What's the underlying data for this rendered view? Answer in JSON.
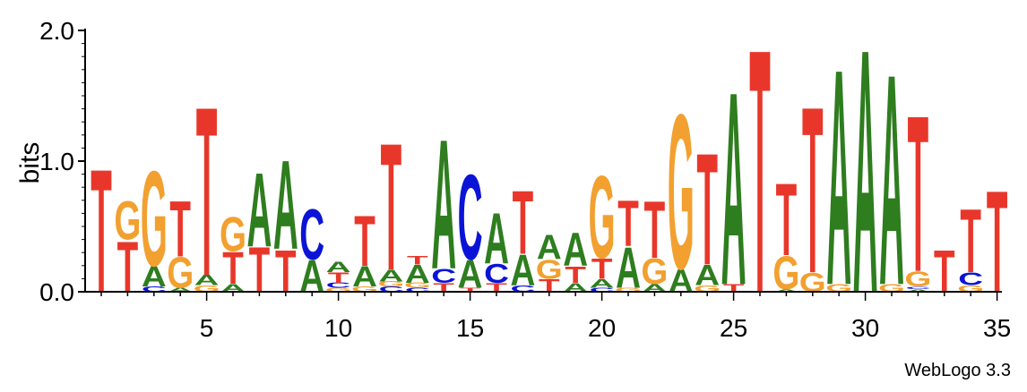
{
  "chart_data": {
    "type": "sequence-logo",
    "ylabel": "bits",
    "ylim": [
      0,
      2.0
    ],
    "y_ticks": [
      "0.0",
      "1.0",
      "2.0"
    ],
    "x_ticks": [
      "5",
      "10",
      "15",
      "20",
      "25",
      "30",
      "35"
    ],
    "x_range": [
      1,
      35
    ],
    "credit": "WebLogo 3.3",
    "colors": {
      "A": "#2e7d1f",
      "C": "#0b14d6",
      "G": "#f2a030",
      "T": "#e8372a"
    },
    "positions": [
      {
        "pos": 1,
        "stack": [
          [
            "T",
            0.97
          ]
        ]
      },
      {
        "pos": 2,
        "stack": [
          [
            "T",
            0.4
          ],
          [
            "G",
            0.3
          ]
        ]
      },
      {
        "pos": 3,
        "stack": [
          [
            "C",
            0.04
          ],
          [
            "A",
            0.16
          ],
          [
            "G",
            0.75
          ]
        ]
      },
      {
        "pos": 4,
        "stack": [
          [
            "A",
            0.03
          ],
          [
            "G",
            0.24
          ],
          [
            "T",
            0.44
          ]
        ]
      },
      {
        "pos": 5,
        "stack": [
          [
            "G",
            0.05
          ],
          [
            "A",
            0.08
          ],
          [
            "T",
            1.33
          ]
        ]
      },
      {
        "pos": 6,
        "stack": [
          [
            "A",
            0.06
          ],
          [
            "T",
            0.25
          ],
          [
            "G",
            0.27
          ]
        ]
      },
      {
        "pos": 7,
        "stack": [
          [
            "T",
            0.35
          ],
          [
            "A",
            0.58
          ]
        ]
      },
      {
        "pos": 8,
        "stack": [
          [
            "T",
            0.33
          ],
          [
            "A",
            0.7
          ]
        ]
      },
      {
        "pos": 9,
        "stack": [
          [
            "A",
            0.25
          ],
          [
            "C",
            0.4
          ]
        ]
      },
      {
        "pos": 10,
        "stack": [
          [
            "G",
            0.03
          ],
          [
            "C",
            0.04
          ],
          [
            "T",
            0.08
          ],
          [
            "A",
            0.08
          ]
        ]
      },
      {
        "pos": 11,
        "stack": [
          [
            "G",
            0.04
          ],
          [
            "A",
            0.16
          ],
          [
            "T",
            0.4
          ]
        ]
      },
      {
        "pos": 12,
        "stack": [
          [
            "C",
            0.04
          ],
          [
            "G",
            0.04
          ],
          [
            "A",
            0.09
          ],
          [
            "T",
            1.0
          ]
        ]
      },
      {
        "pos": 13,
        "stack": [
          [
            "C",
            0.03
          ],
          [
            "G",
            0.04
          ],
          [
            "A",
            0.14
          ],
          [
            "T",
            0.07
          ]
        ]
      },
      {
        "pos": 14,
        "stack": [
          [
            "T",
            0.07
          ],
          [
            "C",
            0.11
          ],
          [
            "A",
            1.02
          ]
        ]
      },
      {
        "pos": 15,
        "stack": [
          [
            "T",
            0.03
          ],
          [
            "A",
            0.22
          ],
          [
            "C",
            0.67
          ]
        ]
      },
      {
        "pos": 16,
        "stack": [
          [
            "T",
            0.07
          ],
          [
            "C",
            0.15
          ],
          [
            "A",
            0.4
          ]
        ]
      },
      {
        "pos": 17,
        "stack": [
          [
            "C",
            0.05
          ],
          [
            "A",
            0.24
          ],
          [
            "T",
            0.5
          ]
        ]
      },
      {
        "pos": 18,
        "stack": [
          [
            "T",
            0.1
          ],
          [
            "G",
            0.15
          ],
          [
            "A",
            0.19
          ]
        ]
      },
      {
        "pos": 19,
        "stack": [
          [
            "A",
            0.07
          ],
          [
            "T",
            0.13
          ],
          [
            "A",
            0.26
          ]
        ]
      },
      {
        "pos": 20,
        "stack": [
          [
            "C",
            0.03
          ],
          [
            "A",
            0.07
          ],
          [
            "T",
            0.16
          ],
          [
            "G",
            0.65
          ]
        ]
      },
      {
        "pos": 21,
        "stack": [
          [
            "G",
            0.03
          ],
          [
            "A",
            0.32
          ],
          [
            "T",
            0.36
          ]
        ]
      },
      {
        "pos": 22,
        "stack": [
          [
            "A",
            0.06
          ],
          [
            "G",
            0.2
          ],
          [
            "T",
            0.45
          ]
        ]
      },
      {
        "pos": 23,
        "stack": [
          [
            "A",
            0.18
          ],
          [
            "G",
            1.22
          ]
        ]
      },
      {
        "pos": 24,
        "stack": [
          [
            "G",
            0.05
          ],
          [
            "A",
            0.16
          ],
          [
            "T",
            0.88
          ]
        ]
      },
      {
        "pos": 25,
        "stack": [
          [
            "T",
            0.06
          ],
          [
            "A",
            1.52
          ]
        ]
      },
      {
        "pos": 26,
        "stack": [
          [
            "T",
            1.92
          ]
        ]
      },
      {
        "pos": 27,
        "stack": [
          [
            "A",
            0.02
          ],
          [
            "G",
            0.26
          ],
          [
            "T",
            0.57
          ]
        ]
      },
      {
        "pos": 28,
        "stack": [
          [
            "G",
            0.15
          ],
          [
            "T",
            1.31
          ]
        ]
      },
      {
        "pos": 29,
        "stack": [
          [
            "G",
            0.06
          ],
          [
            "A",
            1.7
          ]
        ]
      },
      {
        "pos": 30,
        "stack": [
          [
            "A",
            1.92
          ]
        ]
      },
      {
        "pos": 31,
        "stack": [
          [
            "G",
            0.06
          ],
          [
            "A",
            1.66
          ]
        ]
      },
      {
        "pos": 32,
        "stack": [
          [
            "A",
            0.02
          ],
          [
            "C",
            0.02
          ],
          [
            "G",
            0.12
          ],
          [
            "T",
            1.23
          ]
        ]
      },
      {
        "pos": 33,
        "stack": [
          [
            "T",
            0.33
          ]
        ]
      },
      {
        "pos": 34,
        "stack": [
          [
            "G",
            0.05
          ],
          [
            "C",
            0.1
          ],
          [
            "T",
            0.5
          ]
        ]
      },
      {
        "pos": 35,
        "stack": [
          [
            "T",
            0.8
          ]
        ]
      }
    ]
  }
}
